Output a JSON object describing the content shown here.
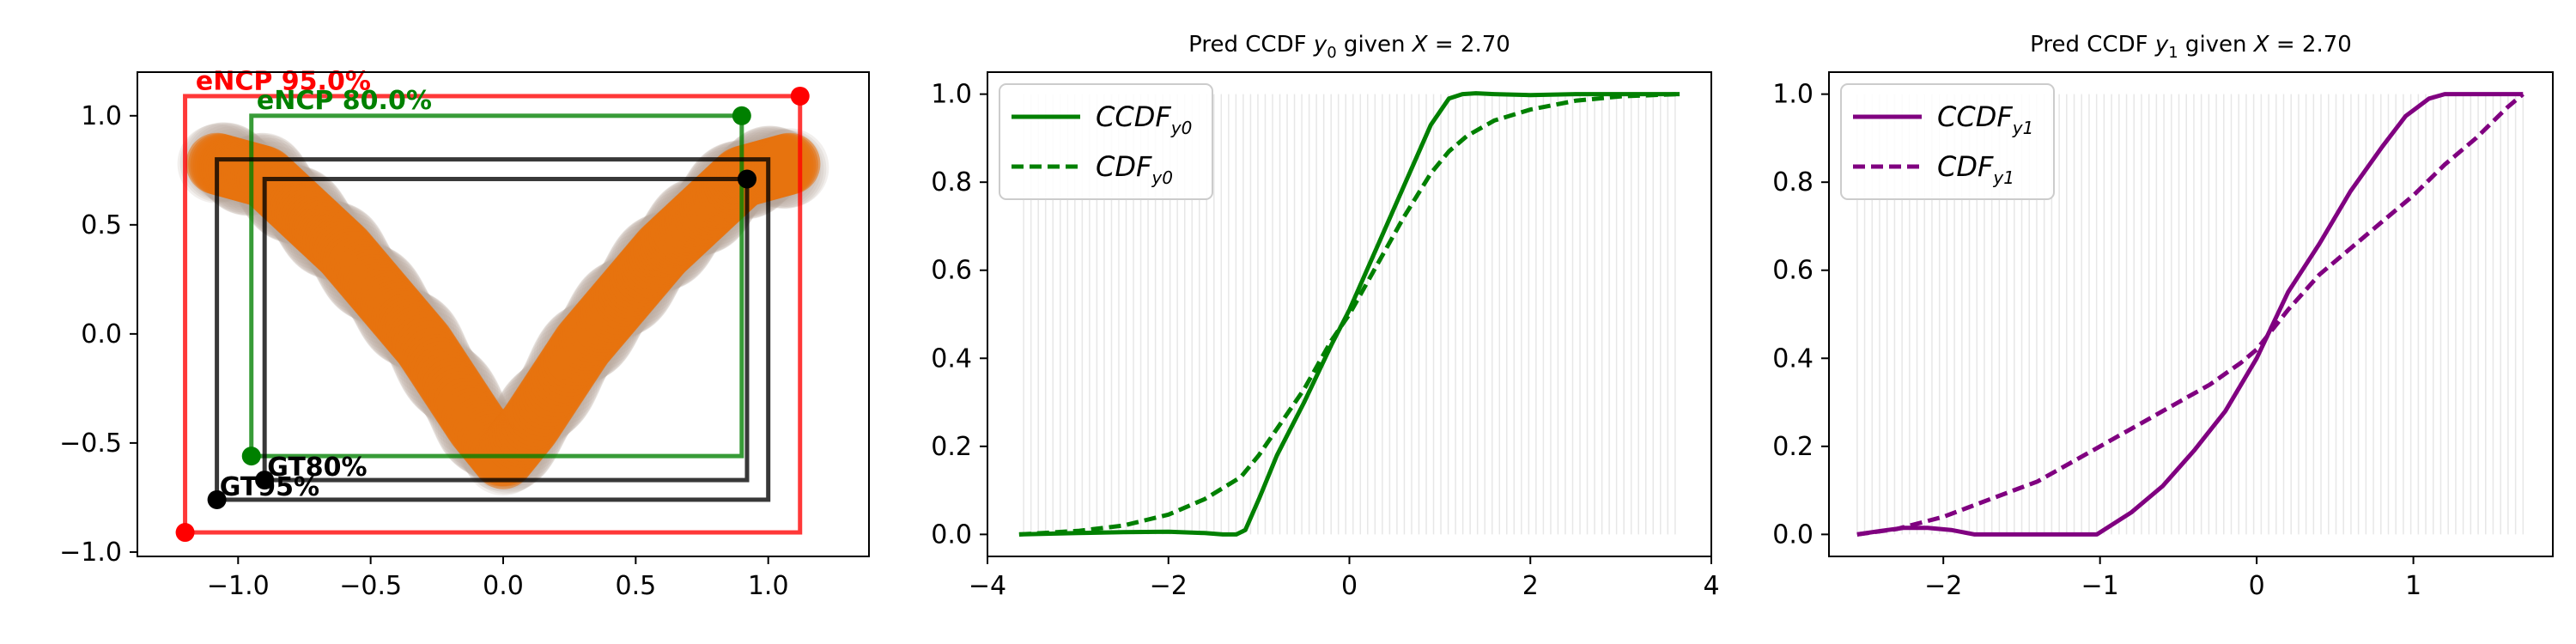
{
  "chart_data": [
    {
      "type": "scatter",
      "title": "",
      "xlabel": "",
      "ylabel": "",
      "xlim": [
        -1.38,
        1.38
      ],
      "ylim": [
        -1.02,
        1.2
      ],
      "xticks": [
        "−1.0",
        "−0.5",
        "0.0",
        "0.5",
        "1.0"
      ],
      "xtick_values": [
        -1.0,
        -0.5,
        0.0,
        0.5,
        1.0
      ],
      "yticks": [
        "−1.0",
        "−0.5",
        "0.0",
        "0.5",
        "1.0"
      ],
      "ytick_values": [
        -1.0,
        -0.5,
        0.0,
        0.5,
        1.0
      ],
      "band": {
        "description_color": "#e8720f",
        "color": "#e8720f",
        "x_range": [
          -1.08,
          1.08
        ],
        "center": [
          [
            -1.08,
            0.78
          ],
          [
            -0.9,
            0.72
          ],
          [
            -0.6,
            0.38
          ],
          [
            -0.3,
            -0.05
          ],
          [
            -0.1,
            -0.42
          ],
          [
            0.0,
            -0.57
          ],
          [
            0.1,
            -0.42
          ],
          [
            0.3,
            -0.05
          ],
          [
            0.6,
            0.38
          ],
          [
            0.9,
            0.72
          ],
          [
            1.08,
            0.78
          ]
        ]
      },
      "regions": [
        {
          "label": "eNCP 95.0%",
          "color": "#ff0000",
          "x0": -1.2,
          "y0": -0.91,
          "x1": 1.12,
          "y1": 1.09
        },
        {
          "label": "eNCP 80.0%",
          "color": "#008000",
          "x0": -0.95,
          "y0": -0.56,
          "x1": 0.9,
          "y1": 1.0
        },
        {
          "label": "GT95%",
          "color": "#000000",
          "x0": -1.08,
          "y0": -0.76,
          "x1": 1.0,
          "y1": 0.8
        },
        {
          "label": "GT80%",
          "color": "#000000",
          "x0": -0.9,
          "y0": -0.67,
          "x1": 0.92,
          "y1": 0.71
        }
      ],
      "labels": [
        {
          "text": "eNCP 95.0%",
          "color": "#ff0000",
          "x": -1.16,
          "y": 1.12
        },
        {
          "text": "eNCP 80.0%",
          "color": "#008000",
          "x": -0.93,
          "y": 1.03
        },
        {
          "text": "GT95%",
          "color": "#000000",
          "x": -1.07,
          "y": -0.74
        },
        {
          "text": "GT80%",
          "color": "#000000",
          "x": -0.89,
          "y": -0.65
        }
      ],
      "markers": [
        {
          "color": "#ff0000",
          "x": -1.2,
          "y": -0.91
        },
        {
          "color": "#ff0000",
          "x": 1.12,
          "y": 1.09
        },
        {
          "color": "#008000",
          "x": -0.95,
          "y": -0.56
        },
        {
          "color": "#008000",
          "x": 0.9,
          "y": 1.0
        },
        {
          "color": "#000000",
          "x": -1.08,
          "y": -0.76
        },
        {
          "color": "#000000",
          "x": -0.9,
          "y": -0.67
        },
        {
          "color": "#000000",
          "x": 0.92,
          "y": 0.71
        }
      ]
    },
    {
      "type": "line",
      "title": "Pred CCDF y0 given X = 2.70",
      "title_parts": {
        "prefix": "Pred CCDF ",
        "var": "y",
        "sub": "0",
        "suffix": " given ",
        "xvar": "X",
        "eq": " = 2.70"
      },
      "xlim": [
        -4,
        4
      ],
      "ylim": [
        -0.05,
        1.05
      ],
      "xticks": [
        "−4",
        "−2",
        "0",
        "2",
        "4"
      ],
      "xtick_values": [
        -4,
        -2,
        0,
        2,
        4
      ],
      "yticks": [
        "0.0",
        "0.2",
        "0.4",
        "0.6",
        "0.8",
        "1.0"
      ],
      "ytick_values": [
        0.0,
        0.2,
        0.4,
        0.6,
        0.8,
        1.0
      ],
      "vlines": {
        "x_range": [
          -3.6,
          3.6
        ],
        "count": 90,
        "color": "#dddddd"
      },
      "legend": {
        "position": "upper left",
        "entries": [
          {
            "label": "CCDF",
            "sub": "y0",
            "style": "solid"
          },
          {
            "label": "CDF",
            "sub": "y0",
            "style": "dashed"
          }
        ]
      },
      "series": [
        {
          "name": "CCDF_y0",
          "color": "#008000",
          "style": "solid",
          "x": [
            -3.65,
            -3.0,
            -2.5,
            -2.0,
            -1.6,
            -1.4,
            -1.25,
            -1.15,
            -1.0,
            -0.8,
            -0.5,
            -0.2,
            0.0,
            0.3,
            0.6,
            0.9,
            1.1,
            1.25,
            1.4,
            1.6,
            2.0,
            2.5,
            3.0,
            3.65
          ],
          "y": [
            0.0,
            0.003,
            0.005,
            0.006,
            0.003,
            0.0,
            0.0,
            0.01,
            0.08,
            0.18,
            0.3,
            0.43,
            0.51,
            0.65,
            0.79,
            0.93,
            0.99,
            1.0,
            1.002,
            1.0,
            0.998,
            1.0,
            1.0,
            1.0
          ]
        },
        {
          "name": "CDF_y0",
          "color": "#008000",
          "style": "dashed",
          "x": [
            -3.65,
            -3.0,
            -2.5,
            -2.0,
            -1.6,
            -1.2,
            -1.0,
            -0.8,
            -0.5,
            -0.2,
            0.0,
            0.3,
            0.6,
            0.9,
            1.1,
            1.3,
            1.6,
            2.0,
            2.5,
            3.0,
            3.65
          ],
          "y": [
            0.0,
            0.008,
            0.02,
            0.045,
            0.08,
            0.13,
            0.18,
            0.24,
            0.33,
            0.44,
            0.5,
            0.61,
            0.72,
            0.82,
            0.87,
            0.905,
            0.94,
            0.965,
            0.985,
            0.995,
            1.0
          ]
        }
      ]
    },
    {
      "type": "line",
      "title": "Pred CCDF y1 given X = 2.70",
      "title_parts": {
        "prefix": "Pred CCDF ",
        "var": "y",
        "sub": "1",
        "suffix": " given ",
        "xvar": "X",
        "eq": " = 2.70"
      },
      "xlim": [
        -2.73,
        1.89
      ],
      "ylim": [
        -0.05,
        1.05
      ],
      "xticks": [
        "−2",
        "−1",
        "0",
        "1"
      ],
      "xtick_values": [
        -2,
        -1,
        0,
        1
      ],
      "yticks": [
        "0.0",
        "0.2",
        "0.4",
        "0.6",
        "0.8",
        "1.0"
      ],
      "ytick_values": [
        0.0,
        0.2,
        0.4,
        0.6,
        0.8,
        1.0
      ],
      "vlines": {
        "x_range": [
          -2.55,
          1.7
        ],
        "count": 90,
        "color": "#dddddd"
      },
      "legend": {
        "position": "upper left",
        "entries": [
          {
            "label": "CCDF",
            "sub": "y1",
            "style": "solid"
          },
          {
            "label": "CDF",
            "sub": "y1",
            "style": "dashed"
          }
        ]
      },
      "series": [
        {
          "name": "CCDF_y1",
          "color": "#800080",
          "style": "solid",
          "x": [
            -2.55,
            -2.4,
            -2.25,
            -2.1,
            -1.95,
            -1.8,
            -1.6,
            -1.3,
            -1.1,
            -1.02,
            -0.8,
            -0.6,
            -0.4,
            -0.2,
            0.0,
            0.2,
            0.4,
            0.6,
            0.8,
            0.95,
            1.1,
            1.2,
            1.45,
            1.7
          ],
          "y": [
            0.0,
            0.008,
            0.015,
            0.015,
            0.01,
            0.0,
            0.0,
            0.0,
            0.0,
            0.0,
            0.05,
            0.11,
            0.19,
            0.28,
            0.4,
            0.55,
            0.66,
            0.78,
            0.88,
            0.95,
            0.99,
            1.0,
            1.0,
            1.0
          ]
        },
        {
          "name": "CDF_y1",
          "color": "#800080",
          "style": "dashed",
          "x": [
            -2.55,
            -2.3,
            -2.0,
            -1.7,
            -1.4,
            -1.1,
            -0.8,
            -0.5,
            -0.3,
            -0.1,
            0.0,
            0.2,
            0.4,
            0.6,
            0.8,
            1.0,
            1.2,
            1.4,
            1.6,
            1.7
          ],
          "y": [
            0.0,
            0.012,
            0.04,
            0.08,
            0.12,
            0.18,
            0.24,
            0.3,
            0.34,
            0.39,
            0.42,
            0.51,
            0.59,
            0.65,
            0.71,
            0.77,
            0.84,
            0.9,
            0.97,
            1.0
          ]
        }
      ]
    }
  ]
}
